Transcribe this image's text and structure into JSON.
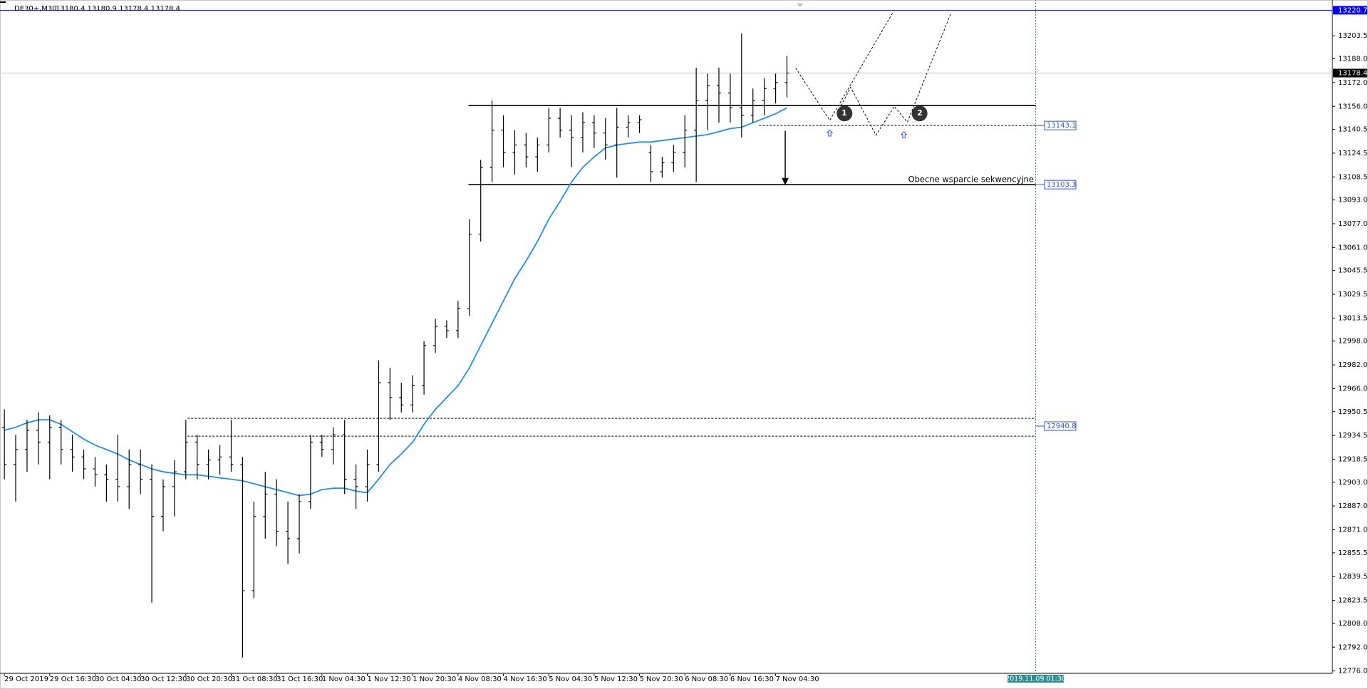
{
  "header": {
    "symbol": "DE30+,M30",
    "quote": "13180.4 13180.9 13178.4 13178.4"
  },
  "chart_data": {
    "type": "ohlc",
    "categories": [
      "29 Oct 2019",
      null,
      null,
      null,
      "29 Oct 16:30",
      null,
      null,
      null,
      "30 Oct 04:30",
      null,
      null,
      null,
      "30 Oct 12:30",
      null,
      null,
      null,
      "30 Oct 20:30",
      null,
      null,
      null,
      "31 Oct 08:30",
      null,
      null,
      null,
      "31 Oct 16:30",
      null,
      null,
      null,
      "1 Nov 04:30",
      null,
      null,
      null,
      "1 Nov 12:30",
      null,
      null,
      null,
      "1 Nov 20:30",
      null,
      null,
      null,
      "4 Nov 08:30",
      null,
      null,
      null,
      "4 Nov 16:30",
      null,
      null,
      null,
      "5 Nov 04:30",
      null,
      null,
      null,
      "5 Nov 12:30",
      null,
      null,
      null,
      "5 Nov 20:30",
      null,
      null,
      null,
      "6 Nov 08:30",
      null,
      null,
      null,
      "6 Nov 16:30",
      null,
      null,
      null,
      "7 Nov 04:30",
      null
    ],
    "ohlc": {
      "color": "#000000",
      "open": [
        12940,
        12915,
        12925,
        12938,
        12930,
        12940,
        12925,
        12920,
        12912,
        12908,
        12905,
        12900,
        12915,
        12905,
        12880,
        12900,
        12910,
        12930,
        12915,
        12918,
        12920,
        12915,
        12830,
        12880,
        12895,
        12870,
        12865,
        12890,
        12930,
        12925,
        12935,
        12905,
        12900,
        12915,
        12970,
        12960,
        12955,
        12968,
        12995,
        13008,
        13005,
        13020,
        13070,
        13115,
        13140,
        13125,
        13130,
        13122,
        13130,
        13148,
        13140,
        13135,
        13145,
        13138,
        13130,
        13142,
        13145,
        13125,
        13112,
        13118,
        13125,
        13140,
        13160,
        13170,
        13165,
        13155,
        13150,
        13160,
        13168,
        13172
      ],
      "high": [
        12952,
        12935,
        12945,
        12950,
        12948,
        12945,
        12935,
        12925,
        12920,
        12915,
        12935,
        12925,
        12925,
        12915,
        12905,
        12918,
        12945,
        12935,
        12925,
        12928,
        12945,
        12920,
        12890,
        12910,
        12905,
        12890,
        12895,
        12935,
        12935,
        12940,
        12945,
        12915,
        12925,
        12985,
        12980,
        12970,
        12975,
        12998,
        13013,
        13012,
        13025,
        13080,
        13120,
        13160,
        13150,
        13140,
        13138,
        13135,
        13155,
        13155,
        13150,
        13152,
        13150,
        13148,
        13155,
        13150,
        13150,
        13130,
        13122,
        13130,
        13150,
        13182,
        13178,
        13182,
        13178,
        13205,
        13168,
        13175,
        13178,
        13190
      ],
      "low": [
        12905,
        12890,
        12910,
        12915,
        12905,
        12915,
        12910,
        12905,
        12900,
        12890,
        12890,
        12885,
        12895,
        12822,
        12870,
        12880,
        12905,
        12905,
        12905,
        12908,
        12910,
        12785,
        12825,
        12865,
        12860,
        12848,
        12855,
        12885,
        12920,
        12915,
        12895,
        12885,
        12890,
        12910,
        12945,
        12950,
        12950,
        12962,
        12990,
        13000,
        13000,
        13015,
        13065,
        13105,
        13115,
        13110,
        13115,
        13112,
        13125,
        13135,
        13115,
        13125,
        13128,
        13120,
        13108,
        13135,
        13138,
        13105,
        13108,
        13112,
        13115,
        13105,
        13140,
        13145,
        13145,
        13135,
        13145,
        13150,
        13158,
        13162
      ],
      "close": [
        12915,
        12925,
        12938,
        12930,
        12940,
        12925,
        12920,
        12912,
        12908,
        12905,
        12900,
        12915,
        12905,
        12880,
        12900,
        12910,
        12930,
        12915,
        12918,
        12920,
        12915,
        12830,
        12880,
        12895,
        12870,
        12865,
        12890,
        12930,
        12925,
        12935,
        12905,
        12900,
        12915,
        12970,
        12960,
        12955,
        12968,
        12995,
        13008,
        13005,
        13020,
        13070,
        13115,
        13140,
        13125,
        13130,
        13122,
        13130,
        13148,
        13140,
        13135,
        13145,
        13138,
        13130,
        13142,
        13145,
        13147,
        13112,
        13118,
        13125,
        13140,
        13160,
        13170,
        13165,
        13155,
        13150,
        13160,
        13168,
        13172,
        13178.4
      ]
    },
    "ma": {
      "color": "#1e8ff0",
      "values": [
        12938,
        12940,
        12943,
        12945,
        12945,
        12942,
        12937,
        12932,
        12928,
        12925,
        12922,
        12918,
        12915,
        12912,
        12910,
        12909,
        12908,
        12908,
        12907,
        12906,
        12905,
        12904,
        12902,
        12900,
        12898,
        12896,
        12894,
        12895,
        12898,
        12899,
        12899,
        12897,
        12896,
        12905,
        12915,
        12922,
        12930,
        12942,
        12952,
        12960,
        12968,
        12980,
        12995,
        13010,
        13025,
        13040,
        13052,
        13065,
        13080,
        13092,
        13105,
        13115,
        13122,
        13128,
        13130,
        13131,
        13132,
        13132,
        13133,
        13134,
        13135,
        13136,
        13137,
        13139,
        13141,
        13142,
        13145,
        13148,
        13151,
        13155
      ]
    },
    "ylim": [
      12774,
      13226
    ],
    "yticks": [
      {
        "value": 12776,
        "label": "12776.0"
      },
      {
        "value": 12792,
        "label": "12792.0"
      },
      {
        "value": 12808,
        "label": "12808.0"
      },
      12823.5,
      12839.5,
      12855.5,
      {
        "value": 12871,
        "label": "12871.0"
      },
      {
        "value": 12887,
        "label": "12887.0"
      },
      {
        "value": 12903,
        "label": "12903.0"
      },
      12918.5,
      12934.5,
      12950.5,
      {
        "value": 12966,
        "label": "12966.0"
      },
      {
        "value": 12982,
        "label": "12982.0"
      },
      {
        "value": 12998,
        "label": "12998.0"
      },
      13013.5,
      13029.5,
      13045.5,
      {
        "value": 13061,
        "label": "13061.0"
      },
      {
        "value": 13077,
        "label": "13077.0"
      },
      {
        "value": 13093,
        "label": "13093.0"
      },
      13108.5,
      13124.5,
      13140.5,
      {
        "value": 13156,
        "label": "13156.0"
      },
      {
        "value": 13172,
        "label": "13172.0"
      },
      {
        "value": 13188,
        "label": "13188.0"
      },
      13203.5
    ],
    "levels": [
      {
        "value": 13220.7,
        "color": "#0000ff",
        "dash": "solid"
      },
      {
        "value": 13178.4,
        "color": "#c0c0c0",
        "dash": "solid"
      },
      {
        "value": 13156.5,
        "color": "#000000",
        "dash": "solid"
      },
      {
        "value": 13143.1,
        "color": "#000000",
        "dash": "dashed"
      },
      {
        "value": 13103.3,
        "color": "#000000",
        "dash": "solid"
      },
      {
        "value": 12946,
        "color": "#000000",
        "dash": "dashed"
      },
      {
        "value": 12934,
        "color": "#000000",
        "dash": "dashed"
      }
    ],
    "level_labels": [
      13220.7,
      13178.4,
      13143.1,
      13103.3,
      12940.8
    ],
    "annotation": "Obecne wsparcie sekwencyjne",
    "markers": [
      "1",
      "2"
    ],
    "cursor_time": "2019.11.09 01:30"
  }
}
